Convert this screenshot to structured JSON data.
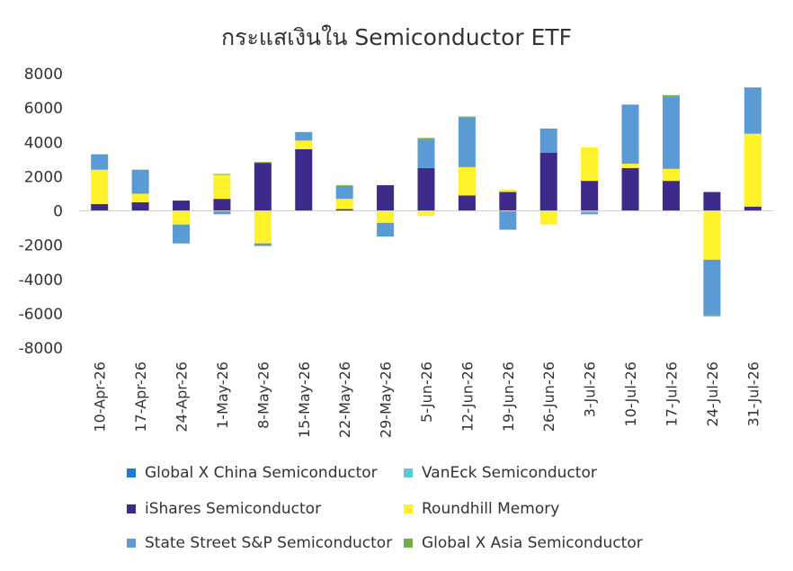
{
  "chart_data": {
    "type": "bar",
    "stacked": true,
    "title": "กระแสเงินใน Semiconductor ETF",
    "xlabel": "",
    "ylabel": "",
    "ylim": [
      -8000,
      8000
    ],
    "yticks": [
      8000,
      6000,
      4000,
      2000,
      0,
      -2000,
      -4000,
      -6000,
      -8000
    ],
    "ytick_labels": [
      "8000",
      "6000",
      "4000",
      "2000",
      "0",
      "-2000",
      "-4000",
      "-6000",
      "-8000"
    ],
    "grid": false,
    "legend_position": "bottom",
    "categories": [
      "10-Apr-26",
      "17-Apr-26",
      "24-Apr-26",
      "1-May-26",
      "8-May-26",
      "15-May-26",
      "22-May-26",
      "29-May-26",
      "5-Jun-26",
      "12-Jun-26",
      "19-Jun-26",
      "26-Jun-26",
      "3-Jul-26",
      "10-Jul-26",
      "17-Jul-26",
      "24-Jul-26",
      "31-Jul-26"
    ],
    "series": [
      {
        "name": "Global X China Semiconductor",
        "color": "#1f77d6",
        "values": [
          0,
          0,
          0,
          0,
          0,
          0,
          0,
          0,
          0,
          0,
          0,
          0,
          0,
          0,
          0,
          0,
          0
        ]
      },
      {
        "name": "VanEck Semiconductor",
        "color": "#5bc8dc",
        "values": [
          0,
          0,
          0,
          0,
          0,
          0,
          0,
          0,
          0,
          0,
          0,
          0,
          -100,
          0,
          0,
          0,
          0
        ]
      },
      {
        "name": "iShares Semiconductor",
        "color": "#3d2a8a",
        "values": [
          400,
          500,
          600,
          700,
          2800,
          3600,
          100,
          1500,
          2500,
          900,
          1100,
          3400,
          1750,
          2500,
          1750,
          1100,
          250
        ]
      },
      {
        "name": "Roundhill Memory",
        "color": "#fff22a",
        "values": [
          2000,
          500,
          -800,
          1400,
          -1900,
          500,
          600,
          -700,
          -300,
          1650,
          150,
          -800,
          1950,
          250,
          700,
          -2850,
          4250
        ]
      },
      {
        "name": "State Street S&P Semiconductor",
        "color": "#5b9bd5",
        "values": [
          900,
          1400,
          -1100,
          -200,
          -150,
          500,
          750,
          -800,
          1650,
          2900,
          -1100,
          1400,
          -100,
          3450,
          4200,
          -3250,
          2700
        ]
      },
      {
        "name": "Global X Asia Semiconductor",
        "color": "#70ad47",
        "values": [
          0,
          0,
          0,
          50,
          50,
          0,
          50,
          0,
          100,
          50,
          0,
          0,
          0,
          0,
          100,
          -50,
          0
        ]
      }
    ]
  }
}
